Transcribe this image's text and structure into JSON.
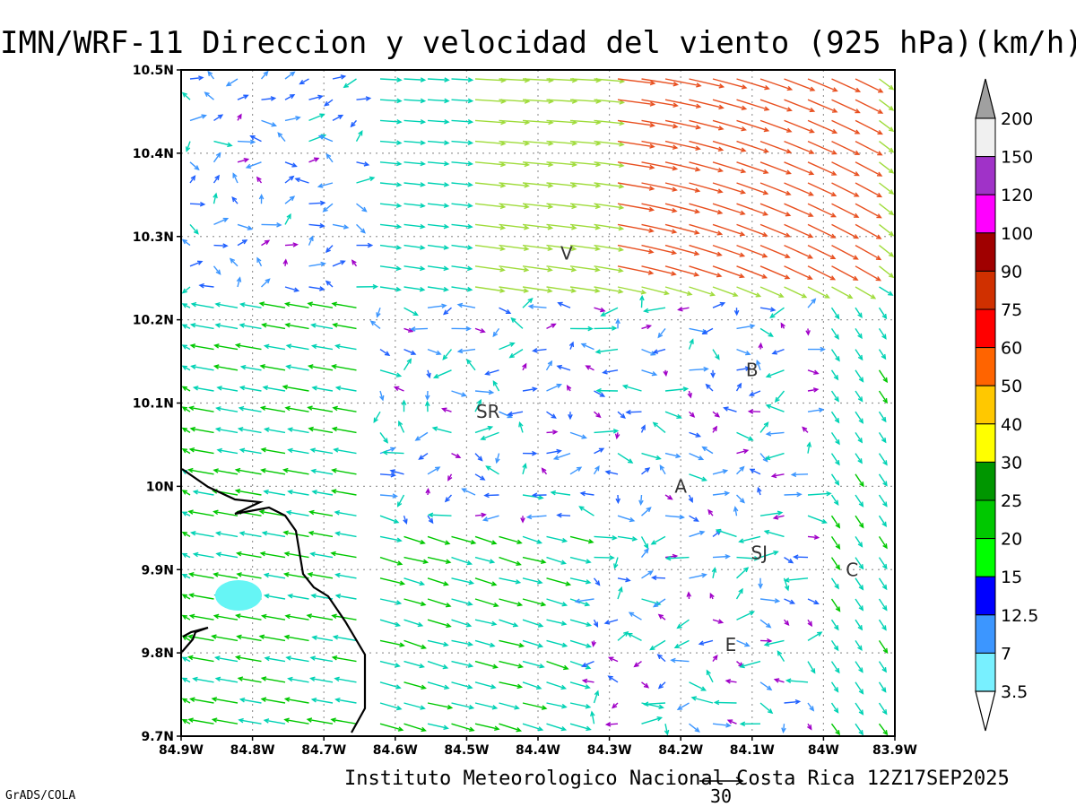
{
  "title": "IMN/WRF-11 Direccion y velocidad del viento (925 hPa)(km/h)",
  "footer": "Instituto Meteorologico Nacional Costa Rica 12Z17SEP2025",
  "credit": "GrADS/COLA",
  "reference_vector_label": "30",
  "map": {
    "lon_range": [
      -84.9,
      -83.9
    ],
    "lat_range": [
      9.7,
      10.5
    ],
    "x_tick_labels": [
      "84.9W",
      "84.8W",
      "84.7W",
      "84.6W",
      "84.5W",
      "84.4W",
      "84.3W",
      "84.2W",
      "84.1W",
      "84W",
      "83.9W"
    ],
    "y_tick_labels": [
      "9.7N",
      "9.8N",
      "9.9N",
      "10N",
      "10.1N",
      "10.2N",
      "10.3N",
      "10.4N",
      "10.5N"
    ],
    "cities": [
      {
        "label": "V",
        "lon": -84.36,
        "lat": 10.28
      },
      {
        "label": "B",
        "lon": -84.1,
        "lat": 10.14
      },
      {
        "label": "SR",
        "lon": -84.47,
        "lat": 10.09
      },
      {
        "label": "A",
        "lon": -84.2,
        "lat": 10.0
      },
      {
        "label": "SJ",
        "lon": -84.09,
        "lat": 9.92
      },
      {
        "label": "C",
        "lon": -83.96,
        "lat": 9.9
      },
      {
        "label": "E",
        "lon": -84.13,
        "lat": 9.81
      }
    ]
  },
  "colorbar": {
    "labels": [
      "200",
      "150",
      "120",
      "100",
      "90",
      "75",
      "60",
      "50",
      "40",
      "30",
      "25",
      "20",
      "15",
      "12.5",
      "7",
      "3.5"
    ],
    "colors": [
      "#a0a0a0",
      "#f0f0f0",
      "#a032c8",
      "#ff00ff",
      "#a00000",
      "#d03000",
      "#ff0000",
      "#ff6400",
      "#ffc800",
      "#ffff00",
      "#009600",
      "#00c800",
      "#00ff00",
      "#0000ff",
      "#3c96ff",
      "#78f0ff"
    ]
  },
  "wind_colors": {
    "calm": "#a000c8",
    "light": "#2060ff",
    "weak": "#3c96ff",
    "moderate": "#00d2b4",
    "fresh": "#00c800",
    "strong": "#a0dc3c",
    "stronger": "#e8c840",
    "max": "#e85020"
  }
}
